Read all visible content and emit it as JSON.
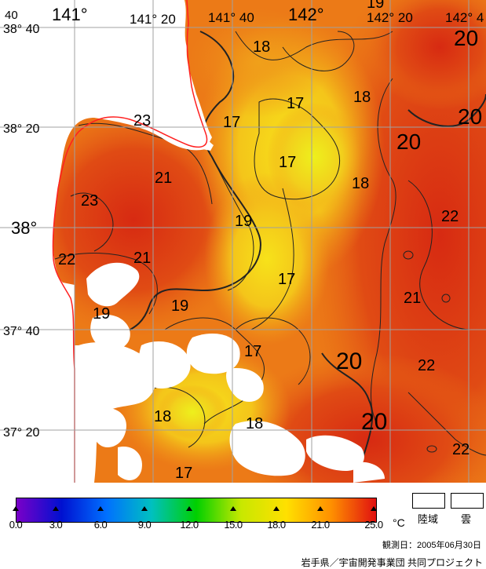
{
  "map": {
    "lon_labels": [
      "141°",
      "141° 20",
      "141° 40",
      "142°",
      "142° 20",
      "142° 4"
    ],
    "lat_labels": [
      "38° 40",
      "38° 20",
      "38°",
      "37° 40",
      "37° 20"
    ],
    "corner_label": "40",
    "contour_labels": [
      "18",
      "17",
      "18",
      "17",
      "23",
      "21",
      "17",
      "20",
      "20",
      "23",
      "18",
      "19",
      "22",
      "21",
      "17",
      "22",
      "19",
      "21",
      "19",
      "17",
      "20",
      "22",
      "20",
      "18",
      "18",
      "22",
      "17",
      "20",
      "19"
    ]
  },
  "colorbar": {
    "ticks": [
      "0.0",
      "3.0",
      "6.0",
      "9.0",
      "12.0",
      "15.0",
      "18.0",
      "21.0",
      "25.0"
    ],
    "unit": "°C",
    "colors": [
      "#7a00c8",
      "#0010d0",
      "#0070ff",
      "#00c0c0",
      "#00d000",
      "#c8e800",
      "#ffe000",
      "#ff9000",
      "#e01010"
    ]
  },
  "legend": {
    "land_label": "陸域",
    "cloud_label": "雲"
  },
  "date_text": "観測日：2005年06月30日",
  "credit_text": "岩手県／宇宙開発事業団 共同プロジェクト"
}
